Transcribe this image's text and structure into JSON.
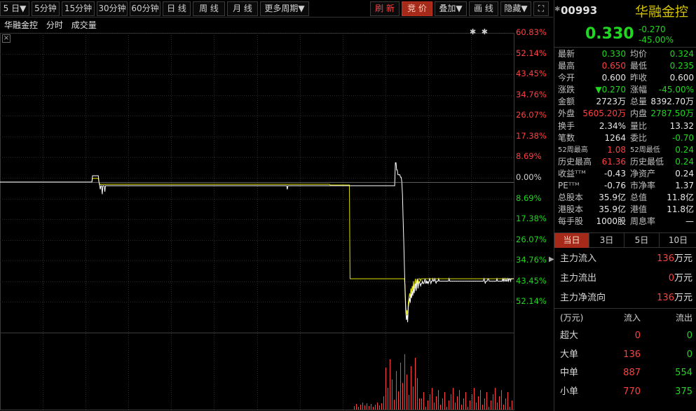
{
  "toolbar": {
    "periods": [
      "5 日▼",
      "5分钟",
      "15分钟",
      "30分钟",
      "60分钟",
      "日 线",
      "周 线",
      "月 线",
      "更多周期▼"
    ],
    "refresh": "刷 新",
    "auction": "竞 价",
    "overlay": "叠加▼",
    "draw": "画 线",
    "hide": "隐藏▼",
    "fullscreen": "⛶"
  },
  "chart": {
    "title": [
      "华融金控",
      "分时",
      "成交量"
    ],
    "stars": "✱ ✱",
    "pct_labels": [
      {
        "text": "60.83%",
        "dir": "up"
      },
      {
        "text": "52.14%",
        "dir": "up"
      },
      {
        "text": "43.45%",
        "dir": "up"
      },
      {
        "text": "34.76%",
        "dir": "up"
      },
      {
        "text": "26.07%",
        "dir": "up"
      },
      {
        "text": "17.38%",
        "dir": "up"
      },
      {
        "text": "8.69%",
        "dir": "up"
      },
      {
        "text": "0.00%",
        "dir": "flat"
      },
      {
        "text": "8.69%",
        "dir": "down"
      },
      {
        "text": "17.38%",
        "dir": "down"
      },
      {
        "text": "26.07%",
        "dir": "down"
      },
      {
        "text": "34.76%",
        "dir": "down"
      },
      {
        "text": "43.45%",
        "dir": "down"
      },
      {
        "text": "52.14%",
        "dir": "down"
      }
    ]
  },
  "chart_data": {
    "type": "line",
    "ylim_pct": [
      -60.83,
      60.83
    ],
    "prev_close": 0.6,
    "series": [
      {
        "values_pct": [
          0,
          0,
          0,
          0,
          0,
          0,
          0,
          0,
          0,
          0,
          0,
          0,
          0,
          0,
          0,
          0,
          0,
          0,
          0,
          0,
          0,
          0,
          0,
          0,
          0,
          0,
          0,
          0,
          0,
          0,
          0,
          0,
          0,
          0,
          0,
          0,
          0,
          0,
          0,
          0,
          0,
          0,
          0,
          0,
          0,
          0,
          0,
          0,
          0,
          0,
          0,
          0,
          0,
          0,
          0,
          0,
          0,
          0,
          0,
          0,
          0,
          0,
          0,
          0,
          0,
          0,
          0,
          0,
          0,
          0,
          0,
          0,
          0,
          0,
          0,
          0,
          0,
          0,
          0,
          0,
          0,
          0,
          0,
          0,
          0,
          0,
          0,
          0,
          0,
          0,
          0,
          0,
          0,
          0,
          0,
          0,
          0,
          0,
          0,
          0,
          0,
          0,
          0,
          0,
          0,
          0,
          0,
          0,
          0,
          0,
          0,
          0,
          0,
          0,
          0,
          0,
          0,
          0,
          0,
          0,
          0,
          0,
          0,
          0,
          0,
          0,
          0,
          0,
          0,
          0,
          0,
          0,
          0,
          0,
          0,
          0,
          0,
          0,
          0,
          0,
          0,
          0,
          0,
          2.6,
          2.6,
          2.6,
          2.6,
          2.6,
          2.6,
          2.6,
          2.6,
          2.6,
          2.6,
          0,
          -1.5,
          -3,
          -1.5,
          -1.5,
          -5,
          -1.5,
          -1.5,
          -1.5,
          -4,
          -1.5,
          -1.5,
          -1.5,
          -1.5,
          -1.5,
          -1.5,
          -1.5,
          -1.5,
          -1.5,
          -1.5,
          -1.5,
          -1.5,
          -1.5,
          -1.5,
          -1.5,
          -1.5,
          -1.5,
          -1.5,
          -1.5,
          -1.5,
          -1.5,
          -1.5,
          -1.5,
          -1.5,
          -1.5,
          -1.5,
          -1.5,
          -1.5,
          -1.5,
          -1.5,
          -1.5,
          -1.5,
          -1.5,
          -1.5,
          -1.5,
          -1.5,
          -1.5,
          -1.5,
          -1.5,
          -1.5,
          -1.5,
          -1.5,
          -1.5,
          -1.5,
          -1.5,
          -1.5,
          -1.5,
          -1.5,
          -1.5,
          -1.5,
          -1.5,
          -1.5,
          -1.5,
          -1.5,
          -1.5,
          -1.5,
          -1.5,
          -1.5,
          -1.5,
          -1.5,
          -1.5,
          -1.5,
          -1.5,
          -1.5,
          -1.5,
          -1.5,
          -1.5,
          -1.5,
          -1.5,
          -1.5,
          -1.5,
          -1.5,
          -1.5,
          -1.5,
          -1.5,
          -1.5,
          -1.5,
          -1.5,
          -1.5,
          -1.5,
          -1.5,
          -1.5,
          -1.5,
          -1.5,
          -1.5,
          -1.5,
          -1.5,
          -1.5,
          -1.5,
          -1.5,
          -1.5,
          -1.5,
          -1.5,
          -1.5,
          -1.5,
          -1.5,
          -1.5,
          -1.5,
          -1.5,
          -1.5,
          -1.5,
          -1.5,
          -1.5,
          -1.5,
          -1.5,
          -1.5,
          -1.5,
          -1.5,
          -1.5,
          -1.5,
          -1.5,
          -1.5,
          -1.5,
          -1.5,
          -1.5,
          -1.5,
          -1.5,
          -1.5,
          -1.5,
          -1.5,
          -1.5,
          -1.5,
          -1.5,
          -1.5,
          -1.5,
          -1.5,
          -1.5,
          -1.5,
          -1.5,
          -1.5,
          -1.5,
          -1.5,
          -1.5,
          -1.5,
          -1.5,
          -1.5,
          -1.5,
          -1.5,
          -1.5,
          -1.5,
          -1.5,
          -1.5,
          -1.5,
          -1.5,
          -1.5,
          -1.5,
          -1.5,
          -1.5,
          -1.5,
          -1.5,
          -1.5,
          -1.5,
          -1.5,
          -1.5,
          -1.5,
          -1.5,
          -1.5,
          -1.5,
          -1.5,
          -1.5,
          -1.5,
          -1.5,
          -1.5,
          -1.5,
          -1.5,
          -1.5,
          -1.5,
          -1.5,
          -1.5,
          -1.5,
          -1.5,
          -1.5,
          -1.5,
          -1.5,
          -1.5,
          -1.5,
          -1.5,
          -1.5,
          -1.5,
          -1.5,
          -1.5,
          -1.5,
          -1.5,
          -1.5,
          -1.5,
          -1.5,
          -1.5,
          -1.5,
          -1.5,
          -1.5,
          -1.5,
          -1.5,
          -1.5,
          -1.5,
          -1.5,
          -1.5,
          -1.5,
          -1.5,
          -1.5,
          -1.5,
          -1.5,
          -1.5,
          -1.5,
          -1.5,
          -1.5,
          -1.5,
          -1.5,
          -1.5,
          -1.5,
          -1.5,
          -1.5,
          -1.5,
          -1.5,
          -1.5,
          -1.5,
          -1.5,
          -1.5,
          -1.5,
          -1.5,
          -1.5,
          -1.5,
          -1.5,
          -1.5,
          -1.5,
          -1.5,
          -1.5,
          -1.5,
          -1.5,
          -1.5,
          -1.5,
          -1.5,
          -1.5,
          -1.5,
          -1.5,
          -1.5,
          -1.5,
          -1.5,
          -1.5,
          -1.5,
          -1.5,
          -1.5,
          -1.5,
          -1.5,
          -1.5,
          -1.5,
          -1.5,
          -1.5,
          -1.5,
          -1.5,
          -1.5,
          -1.5,
          -1.5,
          -1.5,
          -1.5,
          -1.5,
          -1.5,
          -1.5,
          -1.5,
          -1.5,
          -1.5,
          -1.5,
          -1.5,
          -1.5,
          -1.5,
          -1.5,
          -1.5,
          -1.5,
          -1.5,
          -1.5,
          -1.5,
          -1.5,
          -1.5,
          -1.5,
          -1.5,
          -1.5,
          -1.5,
          -1.5,
          -1.5,
          -1.5,
          -1.5,
          -1.5,
          -3,
          -1.5,
          -1.5,
          -1.5,
          -1.5,
          -1.5,
          -1.5,
          -1.5,
          -1.5,
          -1.5,
          -1.5,
          -1.5,
          -1.5,
          -1.5,
          -1.5,
          -1.5,
          -1.5,
          -1.5,
          -1.5,
          -1.5,
          -1.5,
          -1.5,
          -1.5,
          -1.5,
          -1.5,
          -1.5,
          -1.5,
          -1.5,
          -1.5,
          -1.5,
          -1.5,
          -1.5,
          -1.5,
          -1.5,
          -1.5,
          -1.5,
          -1.5,
          -1.5,
          -1.5,
          -1.5,
          -1.5,
          -1.5,
          -1.5,
          -1.5,
          -1.5,
          -1.5,
          -1.5,
          -1.5,
          -1.5,
          -1.5,
          -1.5,
          -1.5,
          -1.5,
          -1.5,
          -1.5,
          -1.5,
          -1.5,
          -1.5,
          -1.5,
          -1.5,
          -1.5,
          -1.5,
          -1.5,
          -1.5,
          -1.5,
          -1.5,
          -1.5,
          -1.5,
          -1.5,
          -1.5,
          -1.5,
          -1.5,
          -1.5,
          -1.5,
          -1.5,
          -1.5,
          -1.5,
          -1.5,
          -1.5,
          -1.5,
          -1.5,
          -1.5,
          -1.5,
          -1.5,
          -1.5,
          -1.5,
          -1.5,
          -1.5,
          -1.5,
          -1.5,
          -1.5,
          -1.5,
          -1.5,
          -1.5,
          -1.5,
          -1.5,
          -1.5,
          -1.5,
          -1.5,
          -1.5,
          -1.5,
          -1.5,
          -1.5,
          -1.5,
          -1.5,
          -1.5,
          -1.5,
          -1.5,
          -1.5,
          -1.5,
          -1.5,
          -1.5,
          -1.5,
          -1.5,
          -1.5,
          -1.5,
          -1.5,
          -1.5,
          -1.5,
          -1.5,
          -1.5,
          -1.5,
          -1.5,
          -1.5,
          -1.5,
          -1.5,
          -1.5,
          -1.5,
          -1.5,
          -1.5,
          -1.5,
          -1.5,
          -1.5,
          -1.5,
          -1.5,
          -1.5,
          -1.5,
          -1.5,
          -1.5,
          -1.5,
          -1.5,
          -1.5,
          -1.5,
          -1.5,
          -1.5,
          -1.5,
          -1.5,
          -1.5,
          -1.5,
          -1.5,
          -1.5,
          -1.5,
          -1.5,
          -1.5,
          -1.5,
          -1.5,
          -1.5,
          -1.5,
          -1.5,
          -1.5,
          -1.5,
          -1.5,
          -1.5,
          -1.5,
          -1.5,
          -1.5,
          -1.5,
          8,
          8,
          5,
          5,
          3,
          3,
          3,
          3,
          2,
          2,
          0,
          -5,
          -15,
          -25,
          -35,
          -45,
          -53,
          -57,
          -55,
          -58,
          -52,
          -50,
          -48,
          -50,
          -46,
          -48,
          -45,
          -47,
          -43,
          -46,
          -44,
          -42,
          -45,
          -43,
          -40,
          -44,
          -42,
          -41,
          -42,
          -43,
          -42,
          -42,
          -41,
          -42,
          -42,
          -41,
          -40,
          -42,
          -41,
          -42,
          -41,
          -42,
          -41,
          -40,
          -41,
          -42,
          -41,
          -41,
          -40,
          -41,
          -41,
          -40,
          -41,
          -42,
          -41,
          -41,
          -41,
          -40,
          -41,
          -41,
          -41,
          -41,
          -41,
          -41,
          -41,
          -41,
          -41,
          -41,
          -41,
          -41,
          -41,
          -41,
          -41,
          -40,
          -41,
          -41,
          -41,
          -41,
          -41,
          -41,
          -41,
          -41,
          -41,
          -41,
          -41,
          -41,
          -41,
          -41,
          -41,
          -41,
          -41,
          -41,
          -41,
          -41,
          -41,
          -41,
          -41,
          -41,
          -41,
          -41,
          -41,
          -41,
          -41,
          -41,
          -41,
          -41,
          -41,
          -41,
          -41,
          -41,
          -41,
          -41,
          -41,
          -41,
          -41,
          -41,
          -41,
          -41,
          -41,
          -41,
          -41,
          -41,
          -41,
          -41,
          -41,
          -41,
          -41,
          -40,
          -41,
          -42,
          -41,
          -41,
          -41,
          -40,
          -40,
          -41,
          -41,
          -41,
          -41,
          -41,
          -41,
          -41,
          -41,
          -41,
          -41,
          -41,
          -41,
          -40,
          -41,
          -41,
          -41,
          -41,
          -41,
          -41,
          -41,
          -41,
          -40,
          -41,
          -40,
          -41,
          -41,
          -40,
          -41,
          -41,
          -40,
          -41,
          -40,
          -40,
          -41,
          -40,
          -40,
          -40,
          -40,
          -40
        ]
      }
    ]
  },
  "stock": {
    "code": "00993",
    "name": "华融金控",
    "price": "0.330",
    "change": "-0.270",
    "change_pct": "-45.00%"
  },
  "quote": [
    {
      "l1": "最新",
      "v1": "0.330",
      "c1": "down",
      "l2": "均价",
      "v2": "0.324",
      "c2": "down"
    },
    {
      "l1": "最高",
      "v1": "0.650",
      "c1": "up",
      "l2": "最低",
      "v2": "0.235",
      "c2": "down"
    },
    {
      "l1": "今开",
      "v1": "0.600",
      "c1": "white",
      "l2": "昨收",
      "v2": "0.600",
      "c2": "white"
    },
    {
      "l1": "涨跌",
      "v1": "▼0.270",
      "c1": "down",
      "l2": "涨幅",
      "v2": "-45.00%",
      "c2": "down"
    },
    {
      "l1": "金额",
      "v1": "2723万",
      "c1": "white",
      "l2": "总量",
      "v2": "8392.70万",
      "c2": "white"
    },
    {
      "l1": "外盘",
      "v1": "5605.20万",
      "c1": "up",
      "l2": "内盘",
      "v2": "2787.50万",
      "c2": "down"
    },
    {
      "l1": "换手",
      "v1": "2.34%",
      "c1": "white",
      "l2": "量比",
      "v2": "13.32",
      "c2": "white"
    },
    {
      "l1": "笔数",
      "v1": "1264",
      "c1": "white",
      "l2": "委比",
      "v2": "-0.70",
      "c2": "down"
    },
    {
      "l1": "52周最高",
      "v1": "1.08",
      "c1": "up",
      "l2": "52周最低",
      "v2": "0.24",
      "c2": "down",
      "small": true
    },
    {
      "l1": "历史最高",
      "v1": "61.36",
      "c1": "up",
      "l2": "历史最低",
      "v2": "0.24",
      "c2": "down"
    },
    {
      "l1": "收益ᵀᵀᴹ",
      "v1": "-0.43",
      "c1": "white",
      "l2": "净资产",
      "v2": "0.24",
      "c2": "white"
    },
    {
      "l1": "PEᵀᵀᴹ",
      "v1": "-0.76",
      "c1": "white",
      "l2": "市净率",
      "v2": "1.37",
      "c2": "white"
    },
    {
      "l1": "总股本",
      "v1": "35.9亿",
      "c1": "white",
      "l2": "总值",
      "v2": "11.8亿",
      "c2": "white"
    },
    {
      "l1": "港股本",
      "v1": "35.9亿",
      "c1": "white",
      "l2": "港值",
      "v2": "11.8亿",
      "c2": "white"
    },
    {
      "l1": "每手股",
      "v1": "1000股",
      "c1": "white",
      "l2": "周息率",
      "v2": "—",
      "c2": "white"
    }
  ],
  "tabs": [
    "当日",
    "3日",
    "5日",
    "10日"
  ],
  "flow": [
    {
      "label": "主力流入",
      "num": "136",
      "unit": "万元"
    },
    {
      "label": "主力流出",
      "num": "0",
      "unit": "万元"
    },
    {
      "label": "主力净流向",
      "num": "136",
      "unit": "万元"
    }
  ],
  "levels": {
    "header": [
      "(万元)",
      "流入",
      "流出"
    ],
    "rows": [
      {
        "name": "超大",
        "in": "0",
        "out": "0"
      },
      {
        "name": "大单",
        "in": "136",
        "out": "0"
      },
      {
        "name": "中单",
        "in": "887",
        "out": "554"
      },
      {
        "name": "小单",
        "in": "770",
        "out": "375"
      }
    ]
  },
  "colors": {
    "up": "#ff4040",
    "down": "#1fd81f",
    "avg_line": "#e0e000",
    "price_line": "#ffffff",
    "grid": "#2a2a2a"
  }
}
